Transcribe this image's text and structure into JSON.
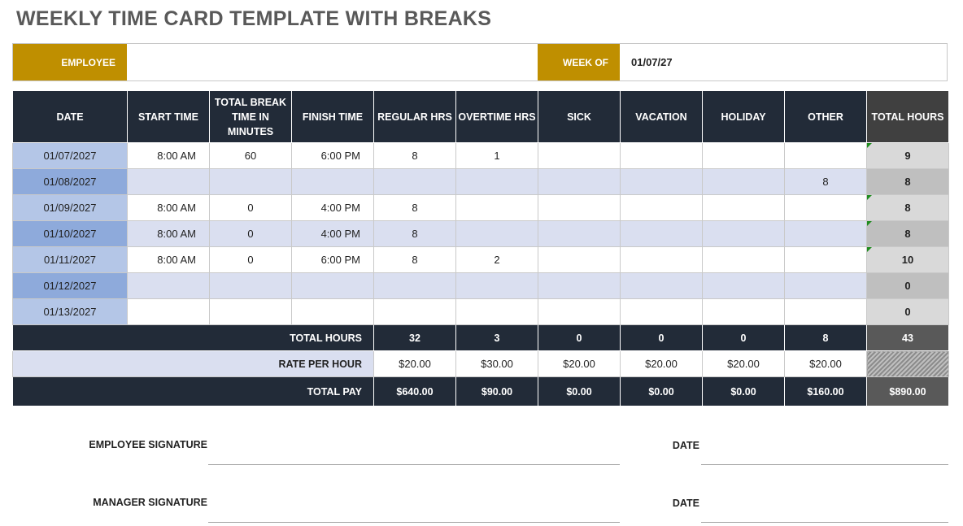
{
  "title": "WEEKLY TIME CARD TEMPLATE WITH BREAKS",
  "header": {
    "employee_label": "EMPLOYEE",
    "employee_value": "",
    "week_of_label": "WEEK OF",
    "week_of_value": "01/07/27"
  },
  "columns": [
    "DATE",
    "START TIME",
    "TOTAL BREAK TIME IN MINUTES",
    "FINISH TIME",
    "REGULAR HRS",
    "OVERTIME HRS",
    "SICK",
    "VACATION",
    "HOLIDAY",
    "OTHER",
    "TOTAL HOURS"
  ],
  "rows": [
    {
      "date": "01/07/2027",
      "start": "8:00 AM",
      "break": "60",
      "finish": "6:00 PM",
      "regular": "8",
      "overtime": "1",
      "sick": "",
      "vacation": "",
      "holiday": "",
      "other": "",
      "total": "9"
    },
    {
      "date": "01/08/2027",
      "start": "",
      "break": "",
      "finish": "",
      "regular": "",
      "overtime": "",
      "sick": "",
      "vacation": "",
      "holiday": "",
      "other": "8",
      "total": "8"
    },
    {
      "date": "01/09/2027",
      "start": "8:00 AM",
      "break": "0",
      "finish": "4:00 PM",
      "regular": "8",
      "overtime": "",
      "sick": "",
      "vacation": "",
      "holiday": "",
      "other": "",
      "total": "8"
    },
    {
      "date": "01/10/2027",
      "start": "8:00 AM",
      "break": "0",
      "finish": "4:00 PM",
      "regular": "8",
      "overtime": "",
      "sick": "",
      "vacation": "",
      "holiday": "",
      "other": "",
      "total": "8"
    },
    {
      "date": "01/11/2027",
      "start": "8:00 AM",
      "break": "0",
      "finish": "6:00 PM",
      "regular": "8",
      "overtime": "2",
      "sick": "",
      "vacation": "",
      "holiday": "",
      "other": "",
      "total": "10"
    },
    {
      "date": "01/12/2027",
      "start": "",
      "break": "",
      "finish": "",
      "regular": "",
      "overtime": "",
      "sick": "",
      "vacation": "",
      "holiday": "",
      "other": "",
      "total": "0"
    },
    {
      "date": "01/13/2027",
      "start": "",
      "break": "",
      "finish": "",
      "regular": "",
      "overtime": "",
      "sick": "",
      "vacation": "",
      "holiday": "",
      "other": "",
      "total": "0"
    }
  ],
  "totals": {
    "label": "TOTAL HOURS",
    "regular": "32",
    "overtime": "3",
    "sick": "0",
    "vacation": "0",
    "holiday": "0",
    "other": "8",
    "total": "43"
  },
  "rates": {
    "label": "RATE PER HOUR",
    "regular": "$20.00",
    "overtime": "$30.00",
    "sick": "$20.00",
    "vacation": "$20.00",
    "holiday": "$20.00",
    "other": "$20.00"
  },
  "pay": {
    "label": "TOTAL PAY",
    "regular": "$640.00",
    "overtime": "$90.00",
    "sick": "$0.00",
    "vacation": "$0.00",
    "holiday": "$0.00",
    "other": "$160.00",
    "total": "$890.00"
  },
  "signatures": {
    "employee_label": "EMPLOYEE SIGNATURE",
    "manager_label": "MANAGER SIGNATURE",
    "date_label": "DATE"
  },
  "colors": {
    "header_gold": "#bf8f00",
    "navy": "#222b38",
    "date_light": "#b4c6e7",
    "date_dark": "#8eaadb",
    "band": "#dadff0"
  }
}
